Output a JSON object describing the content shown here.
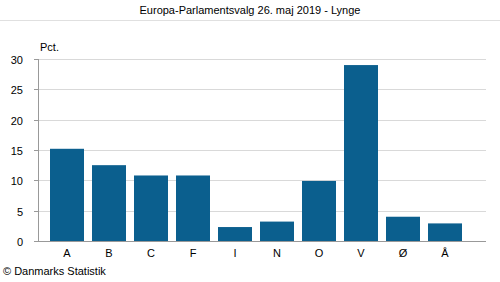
{
  "chart_data": {
    "type": "bar",
    "title": "Europa-Parlamentsvalg 26. maj 2019 - Lynge",
    "y_label": "Pct.",
    "source": "© Danmarks Statistik",
    "categories": [
      "A",
      "B",
      "C",
      "F",
      "I",
      "N",
      "O",
      "V",
      "Ø",
      "Å"
    ],
    "values": [
      15.2,
      12.5,
      10.8,
      10.8,
      2.3,
      3.2,
      9.9,
      29.0,
      4.0,
      2.9
    ],
    "color": "#0b5f8e",
    "ylim": [
      0,
      30
    ],
    "yticks": [
      0,
      5,
      10,
      15,
      20,
      25,
      30
    ],
    "grid": true
  }
}
